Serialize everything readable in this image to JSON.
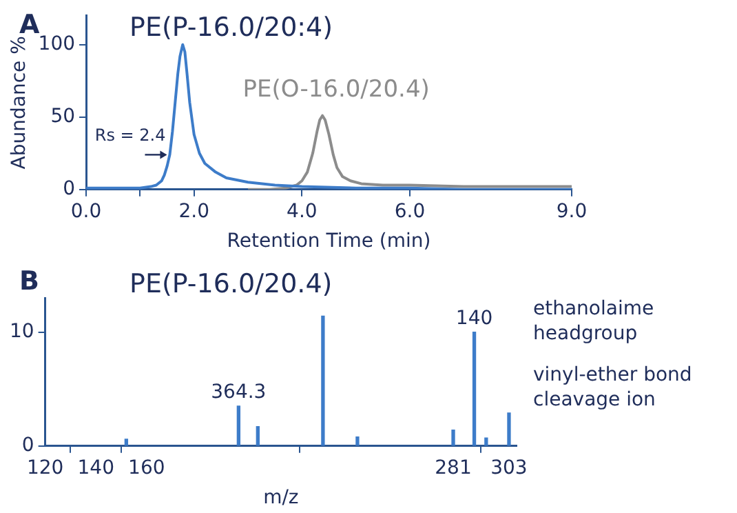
{
  "chart_data": [
    {
      "type": "line",
      "title": "A",
      "subtitle": "PE(P-16.0/20:4)",
      "xlabel": "Retention Time (min)",
      "ylabel": "Abundance %",
      "series": [
        {
          "color": "#3d7cc9",
          "x": [
            0,
            0.5,
            1,
            1.2,
            1.3,
            1.4,
            1.45,
            1.5,
            1.55,
            1.6,
            1.65,
            1.7,
            1.74,
            1.79,
            1.83,
            1.87,
            1.92,
            2,
            2.1,
            2.2,
            2.4,
            2.6,
            3,
            3.5,
            4,
            5,
            6,
            7,
            9
          ],
          "values": [
            1,
            1,
            1,
            2,
            3,
            6,
            10,
            16,
            24,
            40,
            60,
            80,
            92,
            100,
            95,
            80,
            60,
            38,
            25,
            18,
            12,
            8,
            5,
            3,
            2,
            1,
            1,
            0,
            0
          ]
        },
        {
          "name": "PE(O-16.0/20.4)",
          "color": "#8c8c8c",
          "x": [
            3,
            3.4,
            3.7,
            3.9,
            4,
            4.1,
            4.2,
            4.28,
            4.33,
            4.38,
            4.43,
            4.5,
            4.58,
            4.65,
            4.75,
            4.9,
            5.1,
            5.5,
            6,
            7,
            8,
            9
          ],
          "values": [
            0,
            0,
            1,
            3,
            6,
            12,
            25,
            40,
            48,
            51,
            48,
            38,
            24,
            15,
            9,
            6,
            4,
            3,
            3,
            2,
            2,
            2
          ]
        }
      ],
      "xlim": [
        0,
        9
      ],
      "xticks": [
        {
          "value": 0,
          "label": "0.0"
        },
        {
          "value": 1,
          "label": null
        },
        {
          "value": 2,
          "label": "2.0"
        },
        {
          "value": 4,
          "label": "4.0"
        },
        {
          "value": 6,
          "label": "6.0"
        },
        {
          "value": 9,
          "label": "9.0"
        }
      ],
      "ylim": [
        0,
        120
      ],
      "yticks": [
        0,
        50,
        100
      ],
      "annotations": [
        {
          "text": "Rs = 2.4",
          "x": 1.55,
          "y": 24
        }
      ]
    },
    {
      "type": "bar",
      "title": "B",
      "subtitle": "PE(P-16.0/20.4)",
      "xlabel": "m/z",
      "series": [
        {
          "color": "#3d7cc9",
          "x": [
            152,
            196.3,
            203.9,
            229.6,
            243.2,
            281,
            289.3,
            294,
            303
          ],
          "values": [
            0.6,
            3.5,
            1.7,
            11.4,
            0.8,
            1.4,
            10,
            0.7,
            2.9
          ]
        }
      ],
      "xlim": [
        120,
        306
      ],
      "xticks": [
        120,
        140,
        160,
        281,
        303
      ],
      "ylim": [
        0,
        13
      ],
      "yticks": [
        0,
        10
      ],
      "annotations": [
        {
          "text": "364.3",
          "x": 196.3,
          "y": 3.5
        },
        {
          "text": "140",
          "x": 289.3,
          "y": 10
        },
        "ethanolaime headgroup",
        "vinyl-ether bond cleavage ion"
      ]
    }
  ]
}
